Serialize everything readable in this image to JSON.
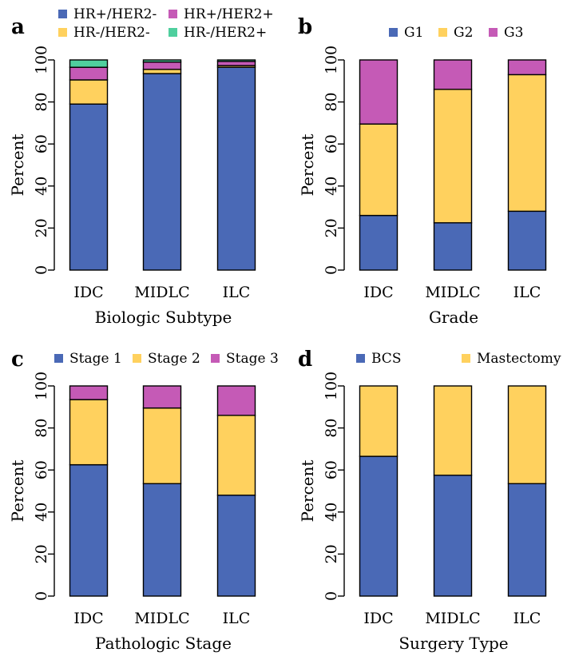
{
  "chart_data": [
    {
      "panel": "a",
      "type": "bar",
      "stacked": true,
      "categories": [
        "IDC",
        "MIDLC",
        "ILC"
      ],
      "xlabel": "Biologic Subtype",
      "ylabel": "Percent",
      "ylim": [
        0,
        100
      ],
      "yticks": [
        "0",
        "20",
        "40",
        "60",
        "80",
        "100"
      ],
      "series": [
        {
          "name": "HR+/HER2-",
          "color": "#4a69b6",
          "values": [
            79,
            93.5,
            96.5
          ]
        },
        {
          "name": "HR-/HER2-",
          "color": "#ffd15e",
          "values": [
            11.5,
            2,
            0.8
          ]
        },
        {
          "name": "HR+/HER2+",
          "color": "#c55ab6",
          "values": [
            6,
            3.5,
            2
          ]
        },
        {
          "name": "HR-/HER2+",
          "color": "#4fcf9e",
          "values": [
            3.5,
            1,
            0.7
          ]
        }
      ],
      "legend_order": [
        0,
        2,
        1,
        3
      ]
    },
    {
      "panel": "b",
      "type": "bar",
      "stacked": true,
      "categories": [
        "IDC",
        "MIDLC",
        "ILC"
      ],
      "xlabel": "Grade",
      "ylabel": "Percent",
      "ylim": [
        0,
        100
      ],
      "yticks": [
        "0",
        "20",
        "40",
        "60",
        "80",
        "100"
      ],
      "series": [
        {
          "name": "G1",
          "color": "#4a69b6",
          "values": [
            26,
            22.5,
            28
          ]
        },
        {
          "name": "G2",
          "color": "#ffd15e",
          "values": [
            43.5,
            63.5,
            65
          ]
        },
        {
          "name": "G3",
          "color": "#c55ab6",
          "values": [
            30.5,
            14,
            7
          ]
        }
      ],
      "legend_order": [
        0,
        1,
        2
      ]
    },
    {
      "panel": "c",
      "type": "bar",
      "stacked": true,
      "categories": [
        "IDC",
        "MIDLC",
        "ILC"
      ],
      "xlabel": "Pathologic Stage",
      "ylabel": "Percent",
      "ylim": [
        0,
        100
      ],
      "yticks": [
        "0",
        "20",
        "40",
        "60",
        "80",
        "100"
      ],
      "series": [
        {
          "name": "Stage 1",
          "color": "#4a69b6",
          "values": [
            62.5,
            53.5,
            48
          ]
        },
        {
          "name": "Stage 2",
          "color": "#ffd15e",
          "values": [
            31,
            36,
            38
          ]
        },
        {
          "name": "Stage 3",
          "color": "#c55ab6",
          "values": [
            6.5,
            10.5,
            14
          ]
        }
      ],
      "legend_order": [
        0,
        1,
        2
      ]
    },
    {
      "panel": "d",
      "type": "bar",
      "stacked": true,
      "categories": [
        "IDC",
        "MIDLC",
        "ILC"
      ],
      "xlabel": "Surgery Type",
      "ylabel": "Percent",
      "ylim": [
        0,
        100
      ],
      "yticks": [
        "0",
        "20",
        "40",
        "60",
        "80",
        "100"
      ],
      "series": [
        {
          "name": "BCS",
          "color": "#4a69b6",
          "values": [
            66.5,
            57.5,
            53.5
          ]
        },
        {
          "name": "Mastectomy",
          "color": "#ffd15e",
          "values": [
            33.5,
            42.5,
            46.5
          ]
        }
      ],
      "legend_order": [
        0,
        1
      ]
    }
  ]
}
